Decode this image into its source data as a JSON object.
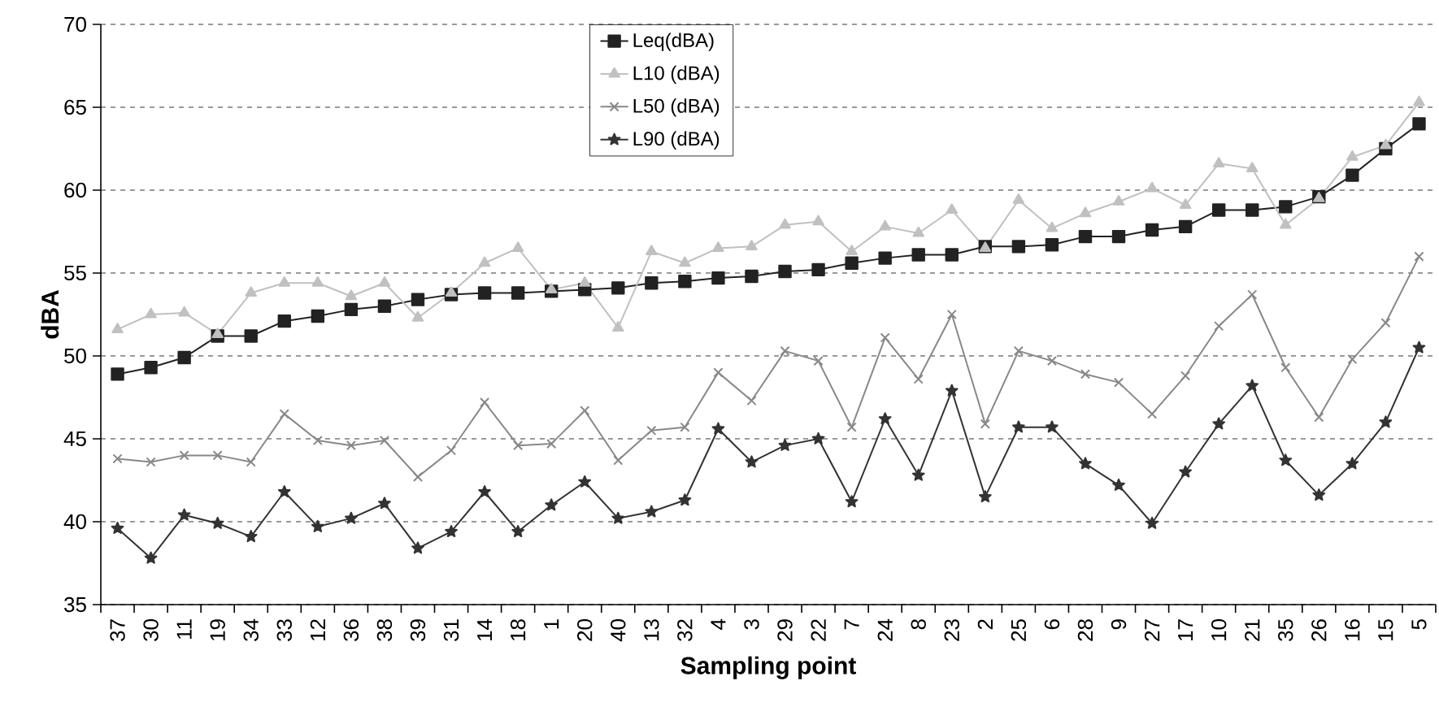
{
  "chart_data": {
    "type": "line",
    "xlabel": "Sampling point",
    "ylabel": "dBA",
    "categories": [
      "37",
      "30",
      "11",
      "19",
      "34",
      "33",
      "12",
      "36",
      "38",
      "39",
      "31",
      "14",
      "18",
      "1",
      "20",
      "40",
      "13",
      "32",
      "4",
      "3",
      "29",
      "22",
      "7",
      "24",
      "8",
      "23",
      "2",
      "25",
      "6",
      "28",
      "9",
      "27",
      "17",
      "10",
      "21",
      "35",
      "26",
      "16",
      "15",
      "5"
    ],
    "ylim": [
      35,
      70
    ],
    "yticks": [
      35,
      40,
      45,
      50,
      55,
      60,
      65,
      70
    ],
    "grid": "y",
    "legend": "top",
    "line_style": "solid",
    "series": [
      {
        "name": "Leq(dBA)",
        "color": "#222222",
        "marker": "square",
        "values": [
          48.9,
          49.3,
          49.9,
          51.2,
          51.2,
          52.1,
          52.4,
          52.8,
          53.0,
          53.4,
          53.7,
          53.8,
          53.8,
          53.9,
          54.0,
          54.1,
          54.4,
          54.5,
          54.7,
          54.8,
          55.1,
          55.2,
          55.6,
          55.9,
          56.1,
          56.1,
          56.6,
          56.6,
          56.7,
          57.2,
          57.2,
          57.6,
          57.8,
          58.8,
          58.8,
          59.0,
          59.6,
          60.9,
          62.5,
          64.0
        ]
      },
      {
        "name": "L10 (dBA)",
        "color": "#c0c0c0",
        "marker": "triangle",
        "values": [
          51.6,
          52.5,
          52.6,
          51.3,
          53.8,
          54.4,
          54.4,
          53.6,
          54.4,
          52.3,
          53.8,
          55.6,
          56.5,
          54.0,
          54.4,
          51.7,
          56.3,
          55.6,
          56.5,
          56.6,
          57.9,
          58.1,
          56.3,
          57.8,
          57.4,
          58.8,
          56.5,
          59.4,
          57.7,
          58.6,
          59.3,
          60.1,
          59.1,
          61.6,
          61.3,
          57.9,
          59.5,
          62.0,
          62.7,
          65.3
        ]
      },
      {
        "name": "L50 (dBA)",
        "color": "#888888",
        "marker": "cross",
        "values": [
          43.8,
          43.6,
          44.0,
          44.0,
          43.6,
          46.5,
          44.9,
          44.6,
          44.9,
          42.7,
          44.3,
          47.2,
          44.6,
          44.7,
          46.7,
          43.7,
          45.5,
          45.7,
          49.0,
          47.3,
          50.3,
          49.7,
          45.7,
          51.1,
          48.6,
          52.5,
          45.9,
          50.3,
          49.7,
          48.9,
          48.4,
          46.5,
          48.8,
          51.8,
          53.7,
          49.3,
          46.3,
          49.8,
          52.0,
          56.0
        ]
      },
      {
        "name": "L90 (dBA)",
        "color": "#333333",
        "marker": "star",
        "values": [
          39.6,
          37.8,
          40.4,
          39.9,
          39.1,
          41.8,
          39.7,
          40.2,
          41.1,
          38.4,
          39.4,
          41.8,
          39.4,
          41.0,
          42.4,
          40.2,
          40.6,
          41.3,
          45.6,
          43.6,
          44.6,
          45.0,
          41.2,
          46.2,
          42.8,
          47.9,
          41.5,
          45.7,
          45.7,
          43.5,
          42.2,
          39.9,
          43.0,
          45.9,
          48.2,
          43.7,
          41.6,
          43.5,
          46.0,
          50.5
        ]
      }
    ]
  }
}
